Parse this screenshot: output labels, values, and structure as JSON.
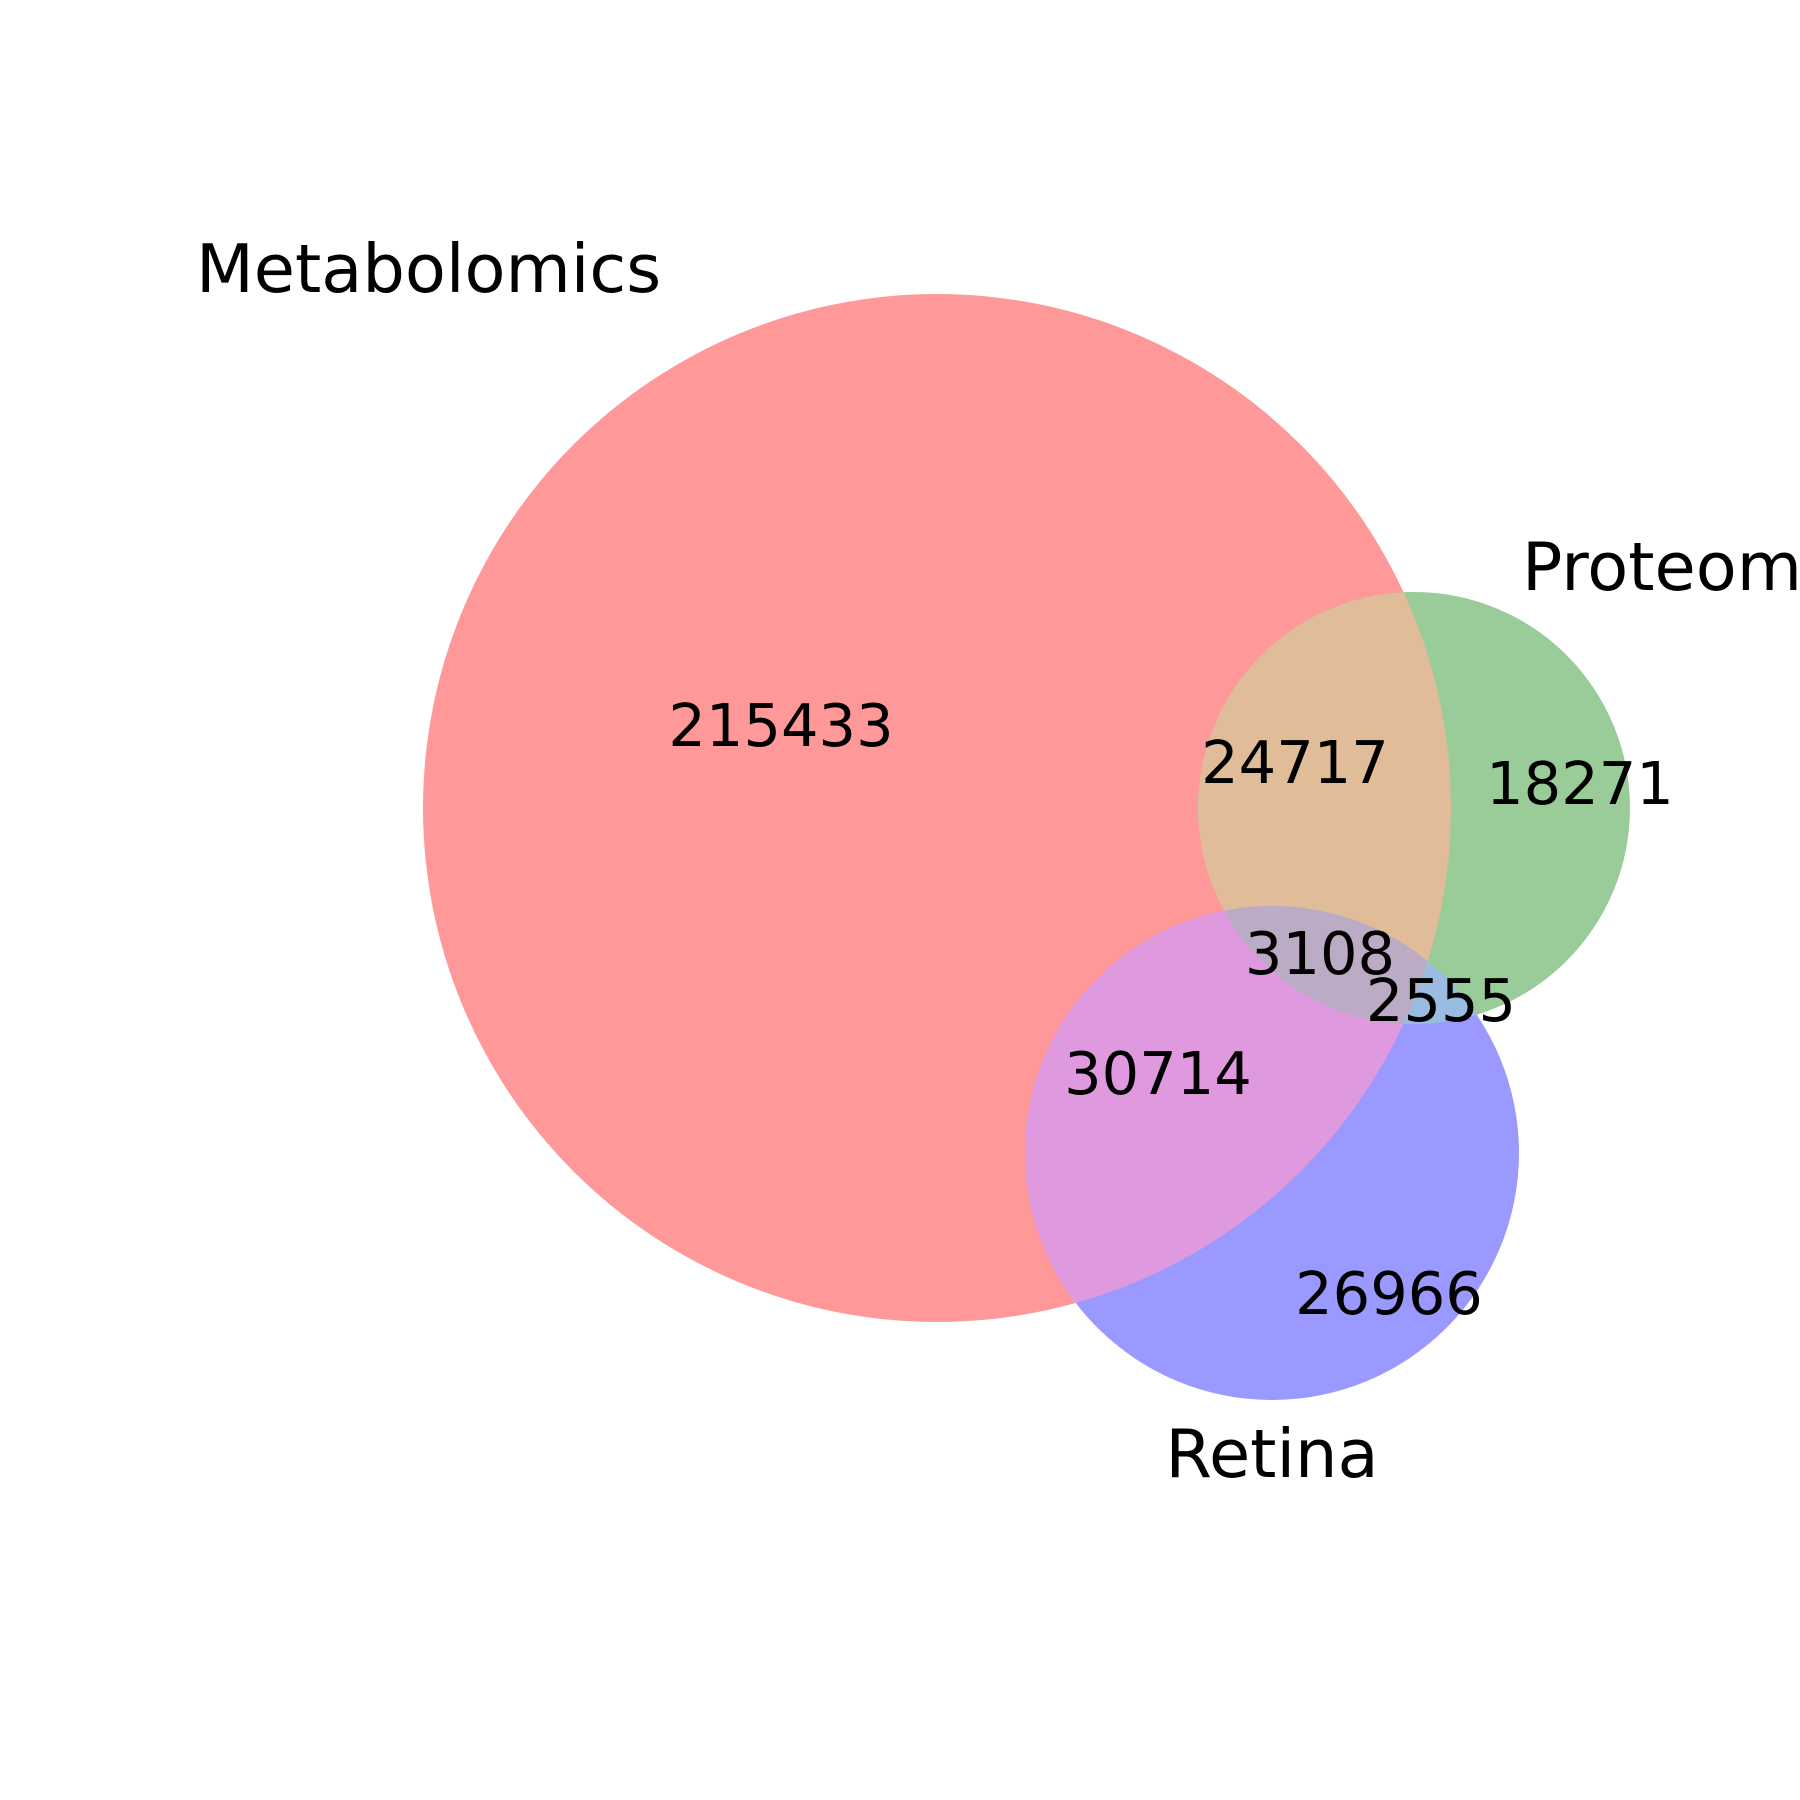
{
  "venn": {
    "sets": [
      {
        "id": "metabolomics",
        "label": "Metabolomics",
        "color": "#ff9999"
      },
      {
        "id": "proteomics",
        "label": "Proteomics",
        "color": "#99cc99"
      },
      {
        "id": "retina",
        "label": "Retina",
        "color": "#9999ff"
      }
    ],
    "overlap_colors": {
      "metabolomics_proteomics": "#e0bc99",
      "metabolomics_retina": "#df99df",
      "proteomics_retina": "#99bce0",
      "all_three": "#bcabc5"
    },
    "regions": {
      "metabolomics_only": "215433",
      "metabolomics_proteomics": "24717",
      "proteomics_only": "18271",
      "all_three": "3108",
      "proteomics_retina": "2555",
      "metabolomics_retina": "30714",
      "retina_only": "26966"
    }
  }
}
